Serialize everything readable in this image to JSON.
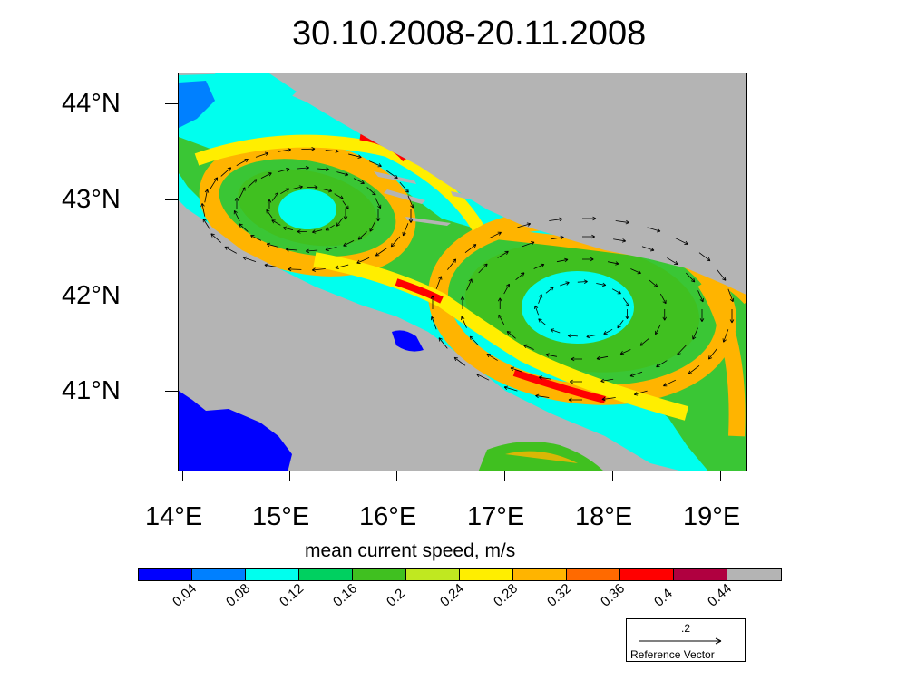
{
  "title": "30.10.2008-20.11.2008",
  "map": {
    "lat_labels": [
      "44°N",
      "43°N",
      "42°N",
      "41°N"
    ],
    "lon_labels": [
      "14°E",
      "15°E",
      "16°E",
      "17°E",
      "18°E",
      "19°E"
    ],
    "extent": {
      "lon": [
        13.97,
        19.25
      ],
      "lat": [
        40.15,
        44.3
      ]
    },
    "land_color": "#b4b4b4",
    "field": "mean current speed",
    "features": [
      "two cyclonic gyres",
      "coastal boundary current",
      "current vectors"
    ]
  },
  "colorbar": {
    "title": "mean current speed, m/s",
    "ticks": [
      "0.04",
      "0.08",
      "0.12",
      "0.16",
      "0.2",
      "0.24",
      "0.28",
      "0.32",
      "0.36",
      "0.4",
      "0.44"
    ],
    "colors": [
      "#0000ff",
      "#0080ff",
      "#00ffee",
      "#00d060",
      "#40c020",
      "#c0e820",
      "#ffee00",
      "#ffb400",
      "#ff6a00",
      "#ff0000",
      "#b00040",
      "#b4b4b4"
    ]
  },
  "reference_vector": {
    "magnitude": ".2",
    "label": "Reference Vector"
  }
}
